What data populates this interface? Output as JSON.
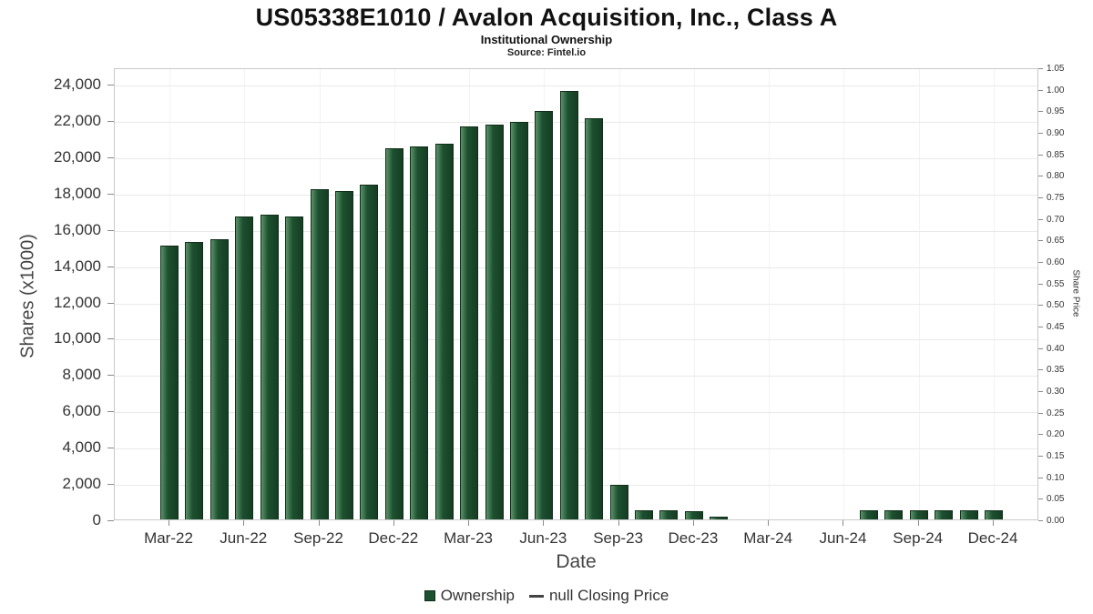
{
  "header": {
    "title": "US05338E1010 / Avalon Acquisition, Inc., Class A",
    "subtitle": "Institutional Ownership",
    "source": "Source: Fintel.io"
  },
  "chart_data": {
    "type": "bar",
    "title": "US05338E1010 / Avalon Acquisition, Inc., Class A",
    "subtitle": "Institutional Ownership",
    "source": "Source: Fintel.io",
    "xlabel": "Date",
    "ylabel_left": "Shares (x1000)",
    "ylabel_right": "Share Price",
    "x": [
      "Mar-22",
      "Apr-22",
      "May-22",
      "Jun-22",
      "Jul-22",
      "Aug-22",
      "Sep-22",
      "Oct-22",
      "Nov-22",
      "Dec-22",
      "Jan-23",
      "Feb-23",
      "Mar-23",
      "Apr-23",
      "May-23",
      "Jun-23",
      "Jul-23",
      "Aug-23",
      "Sep-23",
      "Oct-23",
      "Nov-23",
      "Dec-23",
      "Jan-24",
      "Feb-24",
      "Mar-24",
      "Apr-24",
      "May-24",
      "Jun-24",
      "Jul-24",
      "Aug-24",
      "Sep-24",
      "Oct-24",
      "Nov-24",
      "Dec-24"
    ],
    "series": [
      {
        "name": "Ownership",
        "values": [
          15100,
          15300,
          15450,
          16700,
          16800,
          16700,
          18200,
          18100,
          18450,
          20450,
          20550,
          20700,
          21650,
          21750,
          21900,
          22500,
          23600,
          22100,
          1900,
          500,
          500,
          450,
          150,
          null,
          null,
          null,
          null,
          null,
          500,
          500,
          500,
          500,
          500,
          500
        ]
      }
    ],
    "x_tick_labels": [
      "Mar-22",
      "Jun-22",
      "Sep-22",
      "Dec-22",
      "Mar-23",
      "Jun-23",
      "Sep-23",
      "Dec-23",
      "Mar-24",
      "Jun-24",
      "Sep-24",
      "Dec-24"
    ],
    "x_tick_month_indices": [
      0,
      3,
      6,
      9,
      12,
      15,
      18,
      21,
      24,
      27,
      30,
      33
    ],
    "left_axis": {
      "ticks": [
        0,
        2000,
        4000,
        6000,
        8000,
        10000,
        12000,
        14000,
        16000,
        18000,
        20000,
        22000,
        24000
      ],
      "ylim": [
        0,
        24900
      ]
    },
    "right_axis": {
      "ticks": [
        0.0,
        0.05,
        0.1,
        0.15,
        0.2,
        0.25,
        0.3,
        0.35,
        0.4,
        0.45,
        0.5,
        0.55,
        0.6,
        0.65,
        0.7,
        0.75,
        0.8,
        0.85,
        0.9,
        0.95,
        1.0,
        1.05
      ],
      "ylim": [
        0,
        1.05
      ]
    },
    "legend": [
      {
        "label": "Ownership",
        "symbol": "bar"
      },
      {
        "label": "null Closing Price",
        "symbol": "line"
      }
    ],
    "grid": true,
    "legend_position": "bottom",
    "colors": {
      "bar": "#1d5130",
      "bar_dark": "#143a21",
      "bar_light": "#5b9269",
      "grid": "#e9e9e9",
      "axis_text": "#333333"
    }
  }
}
